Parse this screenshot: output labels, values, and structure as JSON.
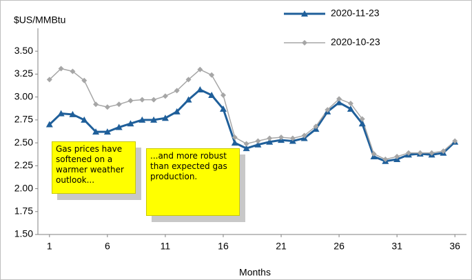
{
  "chart_data": {
    "type": "line",
    "y_label": "$US/MMBtu",
    "x_label": "Months",
    "x": [
      1,
      2,
      3,
      4,
      5,
      6,
      7,
      8,
      9,
      10,
      11,
      12,
      13,
      14,
      15,
      16,
      17,
      18,
      19,
      20,
      21,
      22,
      23,
      24,
      25,
      26,
      27,
      28,
      29,
      30,
      31,
      32,
      33,
      34,
      35,
      36
    ],
    "series": [
      {
        "name": "2020-11-23",
        "color": "#1f5f9a",
        "marker": "triangle",
        "values": [
          2.7,
          2.82,
          2.81,
          2.75,
          2.62,
          2.62,
          2.67,
          2.71,
          2.75,
          2.75,
          2.77,
          2.84,
          2.97,
          3.08,
          3.02,
          2.87,
          2.5,
          2.44,
          2.48,
          2.51,
          2.53,
          2.52,
          2.55,
          2.65,
          2.84,
          2.94,
          2.87,
          2.71,
          2.35,
          2.3,
          2.32,
          2.37,
          2.38,
          2.37,
          2.39,
          2.51
        ]
      },
      {
        "name": "2020-10-23",
        "color": "#a6a6a6",
        "marker": "diamond",
        "values": [
          3.19,
          3.31,
          3.28,
          3.18,
          2.92,
          2.89,
          2.92,
          2.96,
          2.97,
          2.97,
          3.01,
          3.07,
          3.19,
          3.3,
          3.24,
          3.02,
          2.56,
          2.49,
          2.52,
          2.55,
          2.56,
          2.55,
          2.58,
          2.68,
          2.86,
          2.98,
          2.93,
          2.76,
          2.38,
          2.32,
          2.35,
          2.39,
          2.39,
          2.39,
          2.41,
          2.52
        ]
      }
    ],
    "xlim": [
      0,
      37
    ],
    "xticks": [
      1,
      6,
      11,
      16,
      21,
      26,
      31,
      36
    ],
    "ylim": [
      1.5,
      3.75
    ],
    "yticks": [
      {
        "value": 1.5,
        "label": "1.50"
      },
      {
        "value": 1.75,
        "label": "1.75"
      },
      {
        "value": 2,
        "label": "2.00"
      },
      {
        "value": 2.25,
        "label": "2.25"
      },
      {
        "value": 2.5,
        "label": "2.50"
      },
      {
        "value": 2.75,
        "label": "2.75"
      },
      {
        "value": 3,
        "label": "3.00"
      },
      {
        "value": 3.25,
        "label": "3.25"
      },
      {
        "value": 3.5,
        "label": "3.50"
      }
    ],
    "annotations": [
      "Gas prices have softened on a warmer weather outlook...",
      "...and more robust than expected gas production."
    ],
    "grid": false
  }
}
